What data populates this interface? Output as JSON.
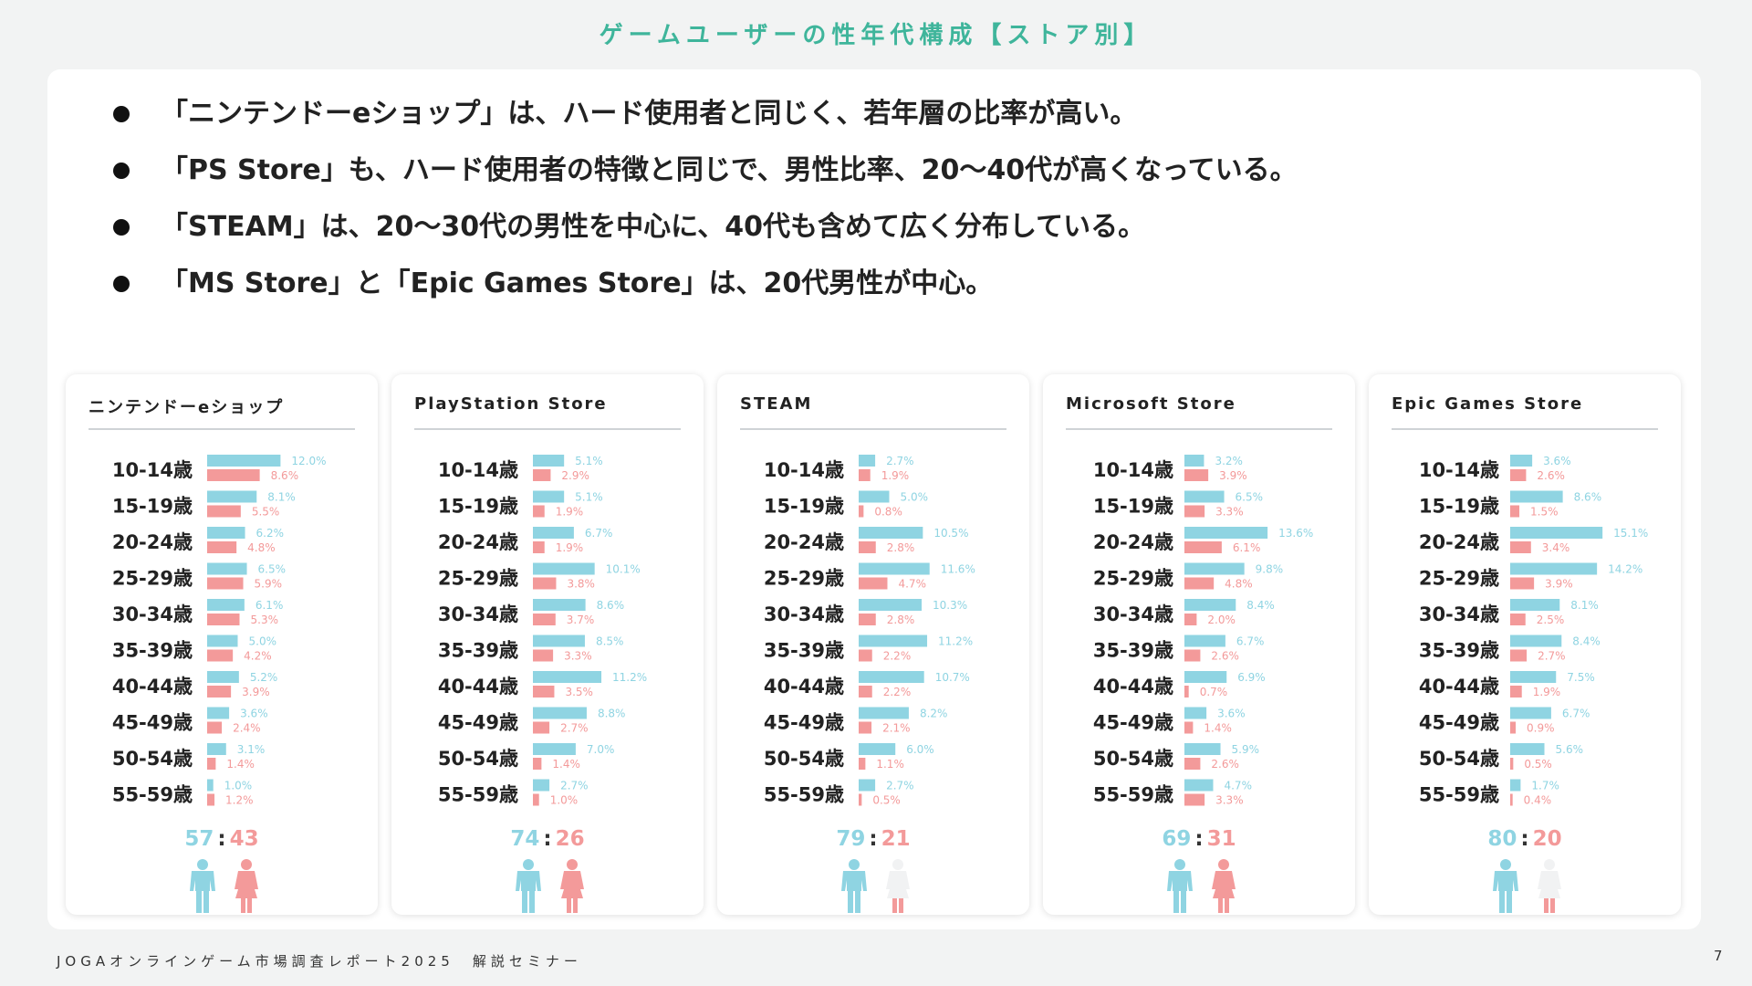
{
  "title": "ゲームユーザーの性年代構成【ストア別】",
  "bullets": [
    "「ニンテンドーeショップ」は、ハード使用者と同じく、若年層の比率が高い。",
    "「PS Store」も、ハード使用者の特徴と同じで、男性比率、20～40代が高くなっている。",
    "「STEAM」は、20～30代の男性を中心に、40代も含めて広く分布している。",
    "「MS Store」と「Epic Games Store」は、20代男性が中心。"
  ],
  "colors": {
    "male": "#8fd4e2",
    "female": "#f39a9a",
    "title": "#3fb59b"
  },
  "chart_data": [
    {
      "type": "bar",
      "title": "ニンテンドーeショップ",
      "categories": [
        "10-14歳",
        "15-19歳",
        "20-24歳",
        "25-29歳",
        "30-34歳",
        "35-39歳",
        "40-44歳",
        "45-49歳",
        "50-54歳",
        "55-59歳"
      ],
      "series": [
        {
          "values": [
            12.0,
            8.1,
            6.2,
            6.5,
            6.1,
            5.0,
            5.2,
            3.6,
            3.1,
            1.0
          ],
          "labels": [
            "12.0%",
            "8.1%",
            "6.2%",
            "6.5%",
            "6.1%",
            "5.0%",
            "5.2%",
            "3.6%",
            "3.1%",
            "1.0%"
          ]
        },
        {
          "values": [
            8.6,
            5.5,
            4.8,
            5.9,
            5.3,
            4.2,
            3.9,
            2.4,
            1.4,
            1.2
          ],
          "labels": [
            "8.6%",
            "5.5%",
            "4.8%",
            "5.9%",
            "5.3%",
            "4.2%",
            "3.9%",
            "2.4%",
            "1.4%",
            "1.2%"
          ]
        }
      ],
      "ratio_male": 57,
      "ratio_female": 43
    },
    {
      "type": "bar",
      "title": "PlayStation Store",
      "categories": [
        "10-14歳",
        "15-19歳",
        "20-24歳",
        "25-29歳",
        "30-34歳",
        "35-39歳",
        "40-44歳",
        "45-49歳",
        "50-54歳",
        "55-59歳"
      ],
      "series": [
        {
          "values": [
            5.1,
            5.1,
            6.7,
            10.1,
            8.6,
            8.5,
            11.2,
            8.8,
            7.0,
            2.7
          ],
          "labels": [
            "5.1%",
            "5.1%",
            "6.7%",
            "10.1%",
            "8.6%",
            "8.5%",
            "11.2%",
            "8.8%",
            "7.0%",
            "2.7%"
          ]
        },
        {
          "values": [
            2.9,
            1.9,
            1.9,
            3.8,
            3.7,
            3.3,
            3.5,
            2.7,
            1.4,
            1.0
          ],
          "labels": [
            "2.9%",
            "1.9%",
            "1.9%",
            "3.8%",
            "3.7%",
            "3.3%",
            "3.5%",
            "2.7%",
            "1.4%",
            "1.0%"
          ]
        }
      ],
      "ratio_male": 74,
      "ratio_female": 26
    },
    {
      "type": "bar",
      "title": "STEAM",
      "categories": [
        "10-14歳",
        "15-19歳",
        "20-24歳",
        "25-29歳",
        "30-34歳",
        "35-39歳",
        "40-44歳",
        "45-49歳",
        "50-54歳",
        "55-59歳"
      ],
      "series": [
        {
          "values": [
            2.7,
            5.0,
            10.5,
            11.6,
            10.3,
            11.2,
            10.7,
            8.2,
            6.0,
            2.7
          ],
          "labels": [
            "2.7%",
            "5.0%",
            "10.5%",
            "11.6%",
            "10.3%",
            "11.2%",
            "10.7%",
            "8.2%",
            "6.0%",
            "2.7%"
          ]
        },
        {
          "values": [
            1.9,
            0.8,
            2.8,
            4.7,
            2.8,
            2.2,
            2.2,
            2.1,
            1.1,
            0.5
          ],
          "labels": [
            "1.9%",
            "0.8%",
            "2.8%",
            "4.7%",
            "2.8%",
            "2.2%",
            "2.2%",
            "2.1%",
            "1.1%",
            "0.5%"
          ]
        }
      ],
      "ratio_male": 79,
      "ratio_female": 21
    },
    {
      "type": "bar",
      "title": "Microsoft Store",
      "categories": [
        "10-14歳",
        "15-19歳",
        "20-24歳",
        "25-29歳",
        "30-34歳",
        "35-39歳",
        "40-44歳",
        "45-49歳",
        "50-54歳",
        "55-59歳"
      ],
      "series": [
        {
          "values": [
            3.2,
            6.5,
            13.6,
            9.8,
            8.4,
            6.7,
            6.9,
            3.6,
            5.9,
            4.7
          ],
          "labels": [
            "3.2%",
            "6.5%",
            "13.6%",
            "9.8%",
            "8.4%",
            "6.7%",
            "6.9%",
            "3.6%",
            "5.9%",
            "4.7%"
          ]
        },
        {
          "values": [
            3.9,
            3.3,
            6.1,
            4.8,
            2.0,
            2.6,
            0.7,
            1.4,
            2.6,
            3.3
          ],
          "labels": [
            "3.9%",
            "3.3%",
            "6.1%",
            "4.8%",
            "2.0%",
            "2.6%",
            "0.7%",
            "1.4%",
            "2.6%",
            "3.3%"
          ]
        }
      ],
      "ratio_male": 69,
      "ratio_female": 31
    },
    {
      "type": "bar",
      "title": "Epic Games Store",
      "categories": [
        "10-14歳",
        "15-19歳",
        "20-24歳",
        "25-29歳",
        "30-34歳",
        "35-39歳",
        "40-44歳",
        "45-49歳",
        "50-54歳",
        "55-59歳"
      ],
      "series": [
        {
          "values": [
            3.6,
            8.6,
            15.1,
            14.2,
            8.1,
            8.4,
            7.5,
            6.7,
            5.6,
            1.7
          ],
          "labels": [
            "3.6%",
            "8.6%",
            "15.1%",
            "14.2%",
            "8.1%",
            "8.4%",
            "7.5%",
            "6.7%",
            "5.6%",
            "1.7%"
          ]
        },
        {
          "values": [
            2.6,
            1.5,
            3.4,
            3.9,
            2.5,
            2.7,
            1.9,
            0.9,
            0.5,
            0.4
          ],
          "labels": [
            "2.6%",
            "1.5%",
            "3.4%",
            "3.9%",
            "2.5%",
            "2.7%",
            "1.9%",
            "0.9%",
            "0.5%",
            "0.4%"
          ]
        }
      ],
      "ratio_male": 80,
      "ratio_female": 20
    }
  ],
  "footer": "JOGAオンラインゲーム市場調査レポート2025　解説セミナー",
  "page_number": "7"
}
